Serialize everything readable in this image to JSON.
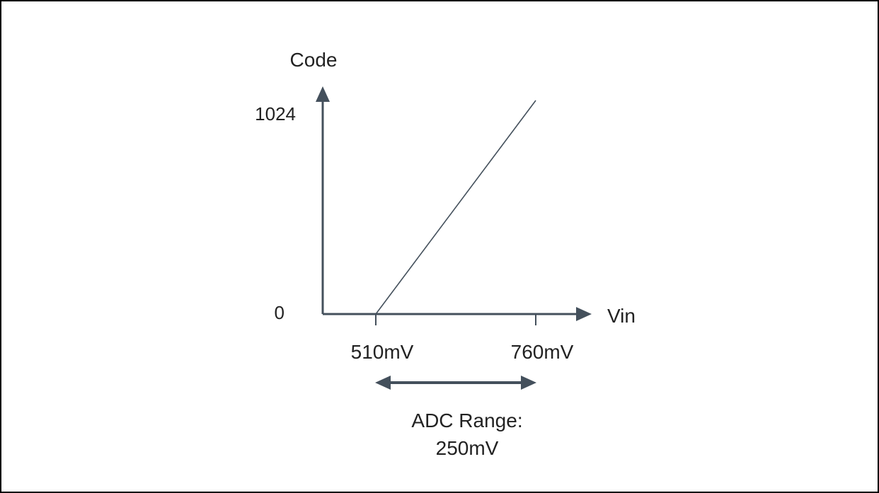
{
  "chart_data": {
    "type": "line",
    "title": "",
    "xlabel": "Vin",
    "ylabel": "Code",
    "x_ticks": [
      "510mV",
      "760mV"
    ],
    "y_ticks": [
      "0",
      "1024"
    ],
    "series": [
      {
        "x": [
          510,
          760
        ],
        "y": [
          0,
          1024
        ]
      }
    ],
    "annotation": {
      "line1": "ADC Range:",
      "line2": "250mV",
      "from": 510,
      "to": 760
    },
    "grid": false,
    "legend": "none"
  },
  "colors": {
    "axis": "#44505c",
    "line": "#44505c",
    "frame": "#000000",
    "text": "#222222"
  }
}
